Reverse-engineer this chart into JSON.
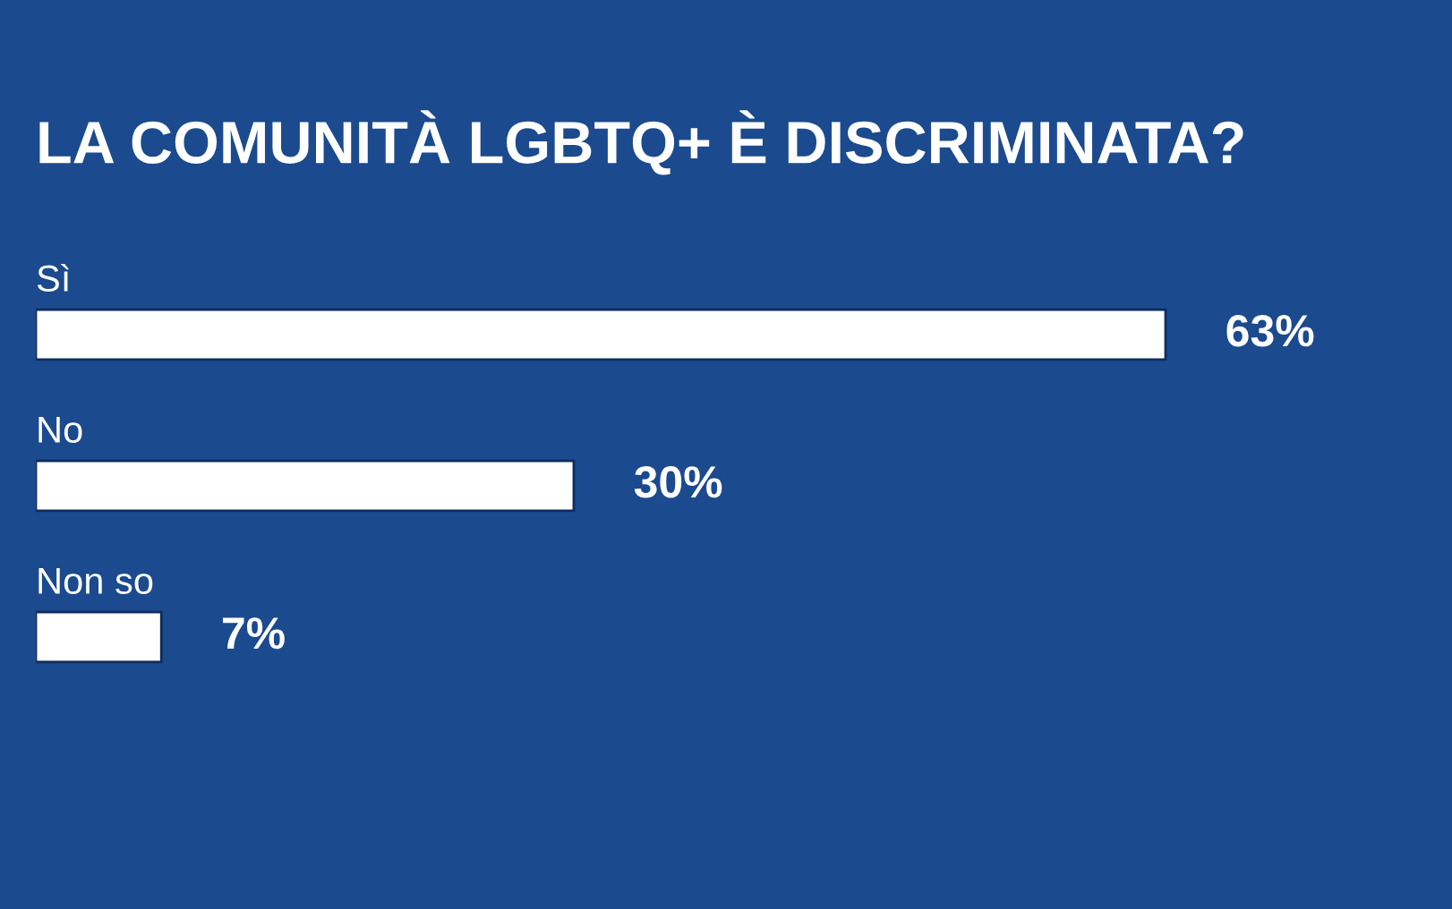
{
  "chart_data": {
    "type": "bar",
    "orientation": "horizontal",
    "title": "LA COMUNITÀ LGBTQ+ È DISCRIMINATA?",
    "categories": [
      "Sì",
      "No",
      "Non so"
    ],
    "values": [
      63,
      30,
      7
    ],
    "value_labels": [
      "63%",
      "30%",
      "7%"
    ],
    "color": "#ffffff"
  }
}
